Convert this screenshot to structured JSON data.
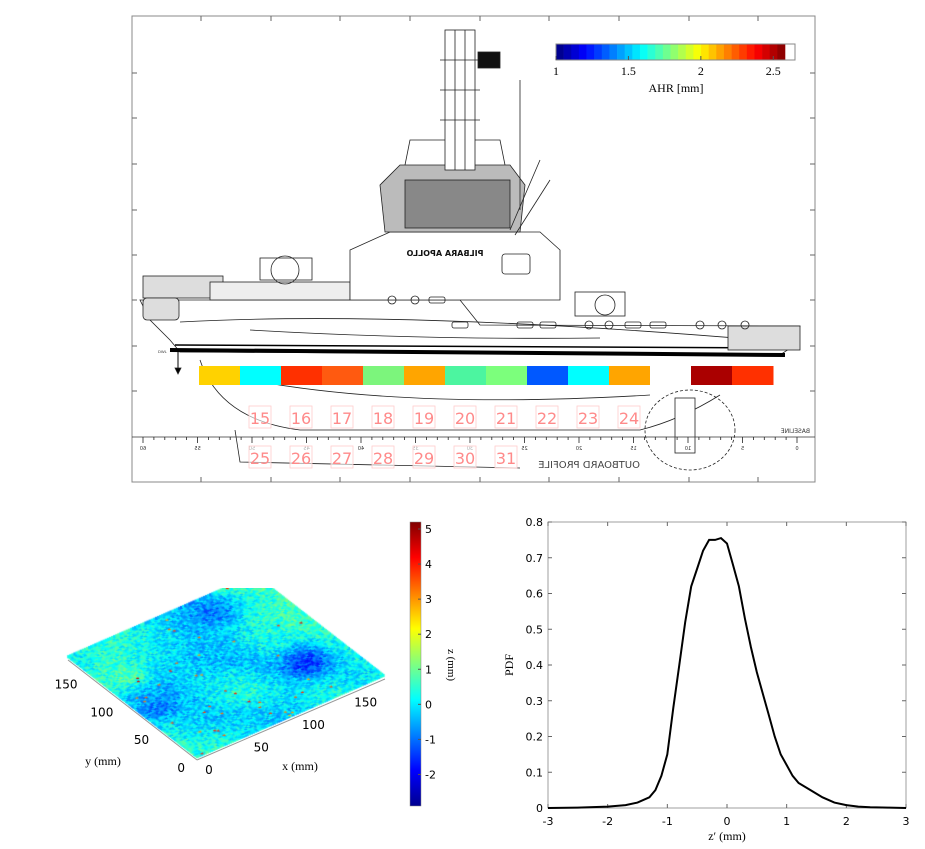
{
  "top_panel": {
    "vessel_name": "PILBARA APOLLO",
    "drawing_title": "OUTBOARD PROFILE",
    "baseline_label": "BASELINE",
    "dwl_label": "DWL",
    "ruler_ticks": [
      "60",
      "55",
      "50",
      "45",
      "40",
      "35",
      "30",
      "25",
      "20",
      "15",
      "10",
      "5",
      "0"
    ],
    "colorbar": {
      "label": "AHR [mm]",
      "range": [
        1,
        2.65
      ],
      "ticks": [
        "1",
        "1.5",
        "2",
        "2.5"
      ],
      "colormap": "jet"
    },
    "strip_row_1": [
      {
        "value": 2.1,
        "color": "#ffd200"
      },
      {
        "value": 1.5,
        "color": "#00ffff"
      },
      {
        "value": 2.4,
        "color": "#ff3000"
      },
      {
        "value": 2.35,
        "color": "#ff5a10"
      },
      {
        "value": 1.8,
        "color": "#7cf57c"
      },
      {
        "value": 2.2,
        "color": "#ffa500"
      },
      {
        "value": 1.65,
        "color": "#4cf5a0"
      },
      {
        "value": 1.8,
        "color": "#7cff7c"
      },
      {
        "value": 1.25,
        "color": "#0058ff"
      },
      {
        "value": 1.5,
        "color": "#00ffff"
      },
      {
        "value": 2.2,
        "color": "#ffa500"
      },
      {
        "value": null,
        "color": "#ffffff"
      },
      {
        "value": 2.6,
        "color": "#aa0000"
      },
      {
        "value": 2.4,
        "color": "#ff3000"
      }
    ],
    "section_labels_row_1": [
      "15",
      "16",
      "17",
      "18",
      "19",
      "20",
      "21",
      "22",
      "23",
      "24"
    ],
    "section_labels_row_2": [
      "25",
      "26",
      "27",
      "28",
      "29",
      "30",
      "31"
    ]
  },
  "chart_data": [
    {
      "type": "heatmap",
      "subtype": "3d-surface",
      "xlabel": "x (mm)",
      "ylabel": "y (mm)",
      "zlabel": "z (mm)",
      "xlim": [
        0,
        180
      ],
      "ylim": [
        0,
        180
      ],
      "xticks": [
        "0",
        "50",
        "100",
        "150"
      ],
      "yticks": [
        "0",
        "50",
        "100",
        "150"
      ],
      "colorbar": {
        "range": [
          -2.9,
          5.2
        ],
        "ticks": [
          "5",
          "4",
          "3",
          "2",
          "1",
          "0",
          "-1",
          "-2"
        ],
        "colormap": "jet"
      }
    },
    {
      "type": "line",
      "xlabel": "z′ (mm)",
      "ylabel": "PDF",
      "xlim": [
        -3,
        3
      ],
      "ylim": [
        0,
        0.8
      ],
      "xticks": [
        "-3",
        "-2",
        "-1",
        "0",
        "1",
        "2",
        "3"
      ],
      "yticks": [
        "0",
        "0.1",
        "0.2",
        "0.3",
        "0.4",
        "0.5",
        "0.6",
        "0.7",
        "0.8"
      ],
      "x": [
        -3,
        -2.5,
        -2,
        -1.7,
        -1.5,
        -1.3,
        -1.2,
        -1.1,
        -1.0,
        -0.9,
        -0.8,
        -0.7,
        -0.6,
        -0.5,
        -0.4,
        -0.3,
        -0.2,
        -0.1,
        0,
        0.1,
        0.2,
        0.3,
        0.4,
        0.5,
        0.6,
        0.7,
        0.8,
        0.9,
        1.0,
        1.1,
        1.2,
        1.4,
        1.6,
        1.8,
        2.0,
        2.2,
        2.4,
        2.7,
        3
      ],
      "y": [
        0,
        0.001,
        0.004,
        0.008,
        0.015,
        0.03,
        0.05,
        0.09,
        0.15,
        0.28,
        0.4,
        0.52,
        0.62,
        0.67,
        0.72,
        0.75,
        0.75,
        0.755,
        0.74,
        0.68,
        0.62,
        0.53,
        0.45,
        0.38,
        0.32,
        0.26,
        0.2,
        0.15,
        0.12,
        0.09,
        0.07,
        0.05,
        0.03,
        0.015,
        0.008,
        0.004,
        0.002,
        0.001,
        0
      ]
    }
  ]
}
